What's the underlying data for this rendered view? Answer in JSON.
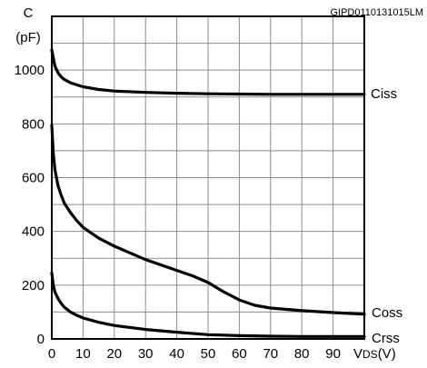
{
  "figure_code": "GIPD0110131015LM",
  "chart_data": {
    "type": "line",
    "title": "",
    "xlabel": "VDS(V)",
    "xlabel_main": "V",
    "xlabel_sub": "DS",
    "xlabel_unit": "(V)",
    "ylabel_line1": "C",
    "ylabel_line2": "(pF)",
    "xlim": [
      0,
      100
    ],
    "ylim": [
      0,
      1200
    ],
    "x_ticks": [
      0,
      10,
      20,
      30,
      40,
      50,
      60,
      70,
      80,
      90
    ],
    "y_ticks": [
      0,
      200,
      400,
      600,
      800,
      1000
    ],
    "grid": true,
    "series": [
      {
        "name": "Ciss",
        "x": [
          0,
          0.5,
          1,
          2,
          3,
          4,
          6,
          8,
          10,
          15,
          20,
          30,
          40,
          50,
          60,
          70,
          80,
          90,
          100
        ],
        "y": [
          1075,
          1045,
          1015,
          990,
          975,
          965,
          953,
          945,
          938,
          928,
          922,
          917,
          914,
          912,
          911,
          910,
          910,
          910,
          910
        ]
      },
      {
        "name": "Coss",
        "x": [
          0,
          0.5,
          1,
          2,
          3,
          4,
          6,
          8,
          10,
          15,
          20,
          25,
          30,
          35,
          40,
          45,
          50,
          55,
          60,
          65,
          70,
          80,
          90,
          100
        ],
        "y": [
          795,
          690,
          630,
          570,
          535,
          505,
          470,
          440,
          415,
          375,
          345,
          320,
          295,
          275,
          255,
          235,
          210,
          175,
          145,
          125,
          115,
          105,
          98,
          92
        ]
      },
      {
        "name": "Crss",
        "x": [
          0,
          0.5,
          1,
          2,
          3,
          4,
          6,
          8,
          10,
          15,
          20,
          30,
          40,
          50,
          60,
          70,
          80,
          90,
          100
        ],
        "y": [
          245,
          200,
          175,
          150,
          132,
          118,
          100,
          88,
          78,
          62,
          50,
          35,
          25,
          16,
          12,
          10,
          9,
          9,
          9
        ]
      }
    ]
  }
}
